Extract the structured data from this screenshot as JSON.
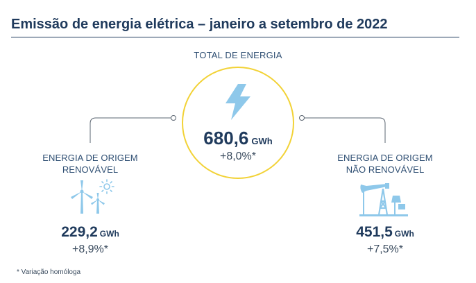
{
  "header": {
    "title": "Emissão de energia elétrica – janeiro a setembro de 2022"
  },
  "total": {
    "label": "TOTAL DE ENERGIA",
    "value": "680,6",
    "unit": "GWh",
    "change": "+8,0%*",
    "icon": "lightning-bolt-icon"
  },
  "renewable": {
    "label_line1": "ENERGIA DE ORIGEM",
    "label_line2": "RENOVÁVEL",
    "value": "229,2",
    "unit": "GWh",
    "change": "+8,9%*",
    "icon": "wind-turbines-sun-icon"
  },
  "non_renewable": {
    "label_line1": "ENERGIA DE ORIGEM",
    "label_line2": "NÃO RENOVÁVEL",
    "value": "451,5",
    "unit": "GWh",
    "change": "+7,5%*",
    "icon": "oil-pump-icon"
  },
  "footnote": "* Variação homóloga",
  "colors": {
    "navy": "#1f3a5c",
    "accent_yellow": "#f2d236",
    "icon_blue": "#8ec8ea",
    "connector_gray": "#5a6470"
  }
}
